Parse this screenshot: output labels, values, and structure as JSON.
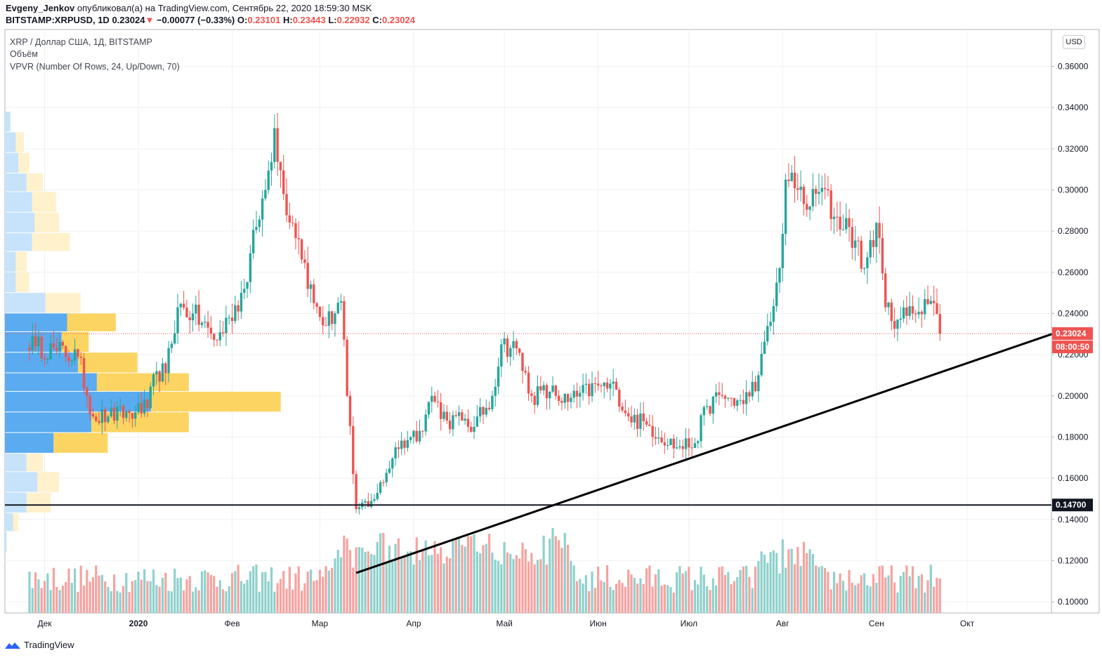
{
  "header": {
    "user": "Evgeny_Jenkov",
    "published": "опубликовал(а) на TradingView.com, Сентябрь 22, 2020 18:59:30 MSK",
    "symbol": "BITSTAMP:XRPUSD, 1D",
    "price": "0.23024",
    "change": "−0.00077 (−0.33%)",
    "o_label": "O:",
    "o_value": "0.23101",
    "h_label": "H:",
    "h_value": "0.23443",
    "l_label": "L:",
    "l_value": "0.22932",
    "c_label": "C:",
    "c_value": "0.23024"
  },
  "legend": {
    "title": "XRP / Доллар США, 1Д, BITSTAMP",
    "volume": "Объём",
    "vpvr": "VPVR (Number Of Rows, 24, Up/Down, 70)"
  },
  "currency_button": "USD",
  "footer": {
    "brand": "TradingView"
  },
  "colors": {
    "up": "#26a69a",
    "down": "#ef5350",
    "vol_up": "#8fd1cc",
    "vol_down": "#f5a3a1",
    "vpvr_up_dark": "#5aabf0",
    "vpvr_down_dark": "#fcd462",
    "vpvr_up_light": "#c7e3fb",
    "vpvr_down_light": "#fff1cc",
    "current": "#ef5350",
    "level": "#131722"
  },
  "chart_data": {
    "type": "candlestick",
    "title": "XRP / Доллар США, 1Д, BITSTAMP",
    "y_axis": {
      "ticks": [
        "0.36000",
        "0.34000",
        "0.32000",
        "0.30000",
        "0.28000",
        "0.26000",
        "0.24000",
        "0.22000",
        "0.20000",
        "0.18000",
        "0.16000",
        "0.14000",
        "0.12000",
        "0.10000"
      ],
      "range": [
        0.091,
        0.366
      ]
    },
    "x_axis": {
      "labels": [
        "Дек",
        "2020",
        "Фев",
        "Мар",
        "Апр",
        "Май",
        "Июн",
        "Июл",
        "Авг",
        "Сен",
        "Окт"
      ]
    },
    "current_price": {
      "value": 0.23024,
      "label": "0.23024",
      "countdown": "08:00:50"
    },
    "horizontal_level": {
      "value": 0.147,
      "label": "0.14700"
    },
    "trendline": {
      "from": {
        "date": "2020-03-13",
        "price": 0.114
      },
      "to": {
        "date": "2020-10-29",
        "price": 0.23
      }
    },
    "price_path": [
      [
        "2019-11-22",
        0.232
      ],
      [
        "2019-11-28",
        0.224
      ],
      [
        "2019-12-05",
        0.222
      ],
      [
        "2019-12-12",
        0.219
      ],
      [
        "2019-12-17",
        0.19
      ],
      [
        "2019-12-22",
        0.19
      ],
      [
        "2019-12-31",
        0.192
      ],
      [
        "2020-01-04",
        0.194
      ],
      [
        "2020-01-07",
        0.212
      ],
      [
        "2020-01-10",
        0.211
      ],
      [
        "2020-01-14",
        0.243
      ],
      [
        "2020-01-19",
        0.24
      ],
      [
        "2020-01-27",
        0.227
      ],
      [
        "2020-01-31",
        0.238
      ],
      [
        "2020-02-05",
        0.252
      ],
      [
        "2020-02-09",
        0.282
      ],
      [
        "2020-02-12",
        0.3
      ],
      [
        "2020-02-15",
        0.33
      ],
      [
        "2020-02-18",
        0.298
      ],
      [
        "2020-02-23",
        0.276
      ],
      [
        "2020-02-28",
        0.245
      ],
      [
        "2020-03-03",
        0.234
      ],
      [
        "2020-03-08",
        0.246
      ],
      [
        "2020-03-10",
        0.2
      ],
      [
        "2020-03-12",
        0.162
      ],
      [
        "2020-03-13",
        0.145
      ],
      [
        "2020-03-18",
        0.149
      ],
      [
        "2020-03-22",
        0.158
      ],
      [
        "2020-03-26",
        0.175
      ],
      [
        "2020-03-31",
        0.18
      ],
      [
        "2020-04-03",
        0.183
      ],
      [
        "2020-04-07",
        0.2
      ],
      [
        "2020-04-12",
        0.188
      ],
      [
        "2020-04-17",
        0.188
      ],
      [
        "2020-04-21",
        0.185
      ],
      [
        "2020-04-27",
        0.2
      ],
      [
        "2020-04-30",
        0.225
      ],
      [
        "2020-05-05",
        0.223
      ],
      [
        "2020-05-10",
        0.2
      ],
      [
        "2020-05-16",
        0.202
      ],
      [
        "2020-05-22",
        0.197
      ],
      [
        "2020-06-01",
        0.205
      ],
      [
        "2020-06-07",
        0.203
      ],
      [
        "2020-06-11",
        0.19
      ],
      [
        "2020-06-17",
        0.186
      ],
      [
        "2020-06-27",
        0.175
      ],
      [
        "2020-07-03",
        0.177
      ],
      [
        "2020-07-07",
        0.195
      ],
      [
        "2020-07-12",
        0.2
      ],
      [
        "2020-07-19",
        0.196
      ],
      [
        "2020-07-24",
        0.21
      ],
      [
        "2020-07-28",
        0.236
      ],
      [
        "2020-07-31",
        0.262
      ],
      [
        "2020-08-02",
        0.305
      ],
      [
        "2020-08-06",
        0.3
      ],
      [
        "2020-08-10",
        0.292
      ],
      [
        "2020-08-14",
        0.301
      ],
      [
        "2020-08-18",
        0.287
      ],
      [
        "2020-08-23",
        0.282
      ],
      [
        "2020-08-28",
        0.262
      ],
      [
        "2020-09-01",
        0.284
      ],
      [
        "2020-09-04",
        0.243
      ],
      [
        "2020-09-08",
        0.237
      ],
      [
        "2020-09-13",
        0.24
      ],
      [
        "2020-09-17",
        0.247
      ],
      [
        "2020-09-20",
        0.245
      ],
      [
        "2020-09-22",
        0.23024
      ]
    ],
    "vpvr_rows": [
      {
        "price_low": 0.328,
        "price_high": 0.338,
        "up": 0.1,
        "down": 0.0,
        "value_area": false
      },
      {
        "price_low": 0.318,
        "price_high": 0.328,
        "up": 0.2,
        "down": 0.15,
        "value_area": false
      },
      {
        "price_low": 0.308,
        "price_high": 0.318,
        "up": 0.25,
        "down": 0.2,
        "value_area": false
      },
      {
        "price_low": 0.299,
        "price_high": 0.308,
        "up": 0.4,
        "down": 0.3,
        "value_area": false
      },
      {
        "price_low": 0.289,
        "price_high": 0.299,
        "up": 0.5,
        "down": 0.45,
        "value_area": false
      },
      {
        "price_low": 0.279,
        "price_high": 0.289,
        "up": 0.55,
        "down": 0.45,
        "value_area": false
      },
      {
        "price_low": 0.27,
        "price_high": 0.279,
        "up": 0.5,
        "down": 0.7,
        "value_area": false
      },
      {
        "price_low": 0.26,
        "price_high": 0.27,
        "up": 0.2,
        "down": 0.2,
        "value_area": false
      },
      {
        "price_low": 0.25,
        "price_high": 0.26,
        "up": 0.2,
        "down": 0.25,
        "value_area": false
      },
      {
        "price_low": 0.24,
        "price_high": 0.25,
        "up": 0.75,
        "down": 0.65,
        "value_area": false
      },
      {
        "price_low": 0.231,
        "price_high": 0.24,
        "up": 1.15,
        "down": 0.9,
        "value_area": true
      },
      {
        "price_low": 0.221,
        "price_high": 0.231,
        "up": 1.05,
        "down": 0.5,
        "value_area": true
      },
      {
        "price_low": 0.211,
        "price_high": 0.221,
        "up": 1.35,
        "down": 1.1,
        "value_area": true
      },
      {
        "price_low": 0.202,
        "price_high": 0.211,
        "up": 1.7,
        "down": 1.7,
        "value_area": true
      },
      {
        "price_low": 0.192,
        "price_high": 0.202,
        "up": 2.7,
        "down": 2.4,
        "value_area": true
      },
      {
        "price_low": 0.182,
        "price_high": 0.192,
        "up": 1.6,
        "down": 1.8,
        "value_area": true
      },
      {
        "price_low": 0.172,
        "price_high": 0.182,
        "up": 0.9,
        "down": 1.0,
        "value_area": true
      },
      {
        "price_low": 0.163,
        "price_high": 0.172,
        "up": 0.4,
        "down": 0.3,
        "value_area": false
      },
      {
        "price_low": 0.153,
        "price_high": 0.163,
        "up": 0.6,
        "down": 0.4,
        "value_area": false
      },
      {
        "price_low": 0.143,
        "price_high": 0.153,
        "up": 0.4,
        "down": 0.45,
        "value_area": false
      },
      {
        "price_low": 0.134,
        "price_high": 0.143,
        "up": 0.15,
        "down": 0.1,
        "value_area": false
      },
      {
        "price_low": 0.124,
        "price_high": 0.134,
        "up": 0.03,
        "down": 0.0,
        "value_area": false
      }
    ]
  }
}
